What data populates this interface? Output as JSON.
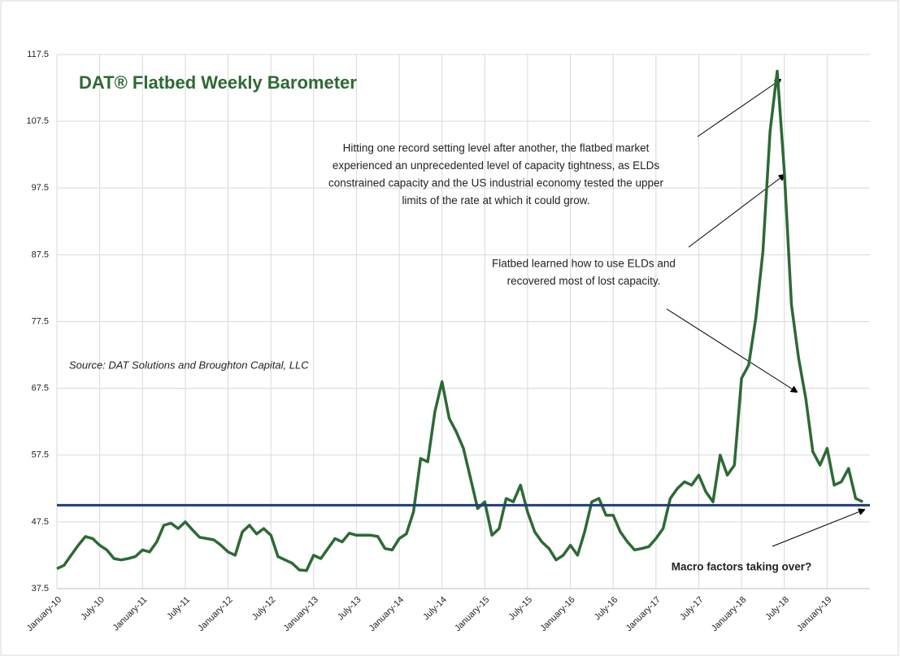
{
  "chart_data": {
    "type": "line",
    "title": "DAT® Flatbed Weekly Barometer",
    "source": "Source: DAT Solutions and Broughton Capital, LLC",
    "annotations": [
      {
        "lines": [
          "Hitting one record setting level after another, the flatbed market",
          "experienced an unprecedented level of capacity tightness, as ELDs",
          "constrained capacity and the US industrial economy tested the upper",
          "limits of the rate at which it could grow."
        ]
      },
      {
        "lines": [
          "Flatbed learned how to use ELDs and",
          "recovered most of lost capacity."
        ]
      },
      {
        "lines": [
          "Macro factors taking over?"
        ],
        "bold": true
      }
    ],
    "x": [
      "2010-01",
      "2010-02",
      "2010-03",
      "2010-04",
      "2010-05",
      "2010-06",
      "2010-07",
      "2010-08",
      "2010-09",
      "2010-10",
      "2010-11",
      "2010-12",
      "2011-01",
      "2011-02",
      "2011-03",
      "2011-04",
      "2011-05",
      "2011-06",
      "2011-07",
      "2011-08",
      "2011-09",
      "2011-10",
      "2011-11",
      "2011-12",
      "2012-01",
      "2012-02",
      "2012-03",
      "2012-04",
      "2012-05",
      "2012-06",
      "2012-07",
      "2012-08",
      "2012-09",
      "2012-10",
      "2012-11",
      "2012-12",
      "2013-01",
      "2013-02",
      "2013-03",
      "2013-04",
      "2013-05",
      "2013-06",
      "2013-07",
      "2013-08",
      "2013-09",
      "2013-10",
      "2013-11",
      "2013-12",
      "2014-01",
      "2014-02",
      "2014-03",
      "2014-04",
      "2014-05",
      "2014-06",
      "2014-07",
      "2014-08",
      "2014-09",
      "2014-10",
      "2014-11",
      "2014-12",
      "2015-01",
      "2015-02",
      "2015-03",
      "2015-04",
      "2015-05",
      "2015-06",
      "2015-07",
      "2015-08",
      "2015-09",
      "2015-10",
      "2015-11",
      "2015-12",
      "2016-01",
      "2016-02",
      "2016-03",
      "2016-04",
      "2016-05",
      "2016-06",
      "2016-07",
      "2016-08",
      "2016-09",
      "2016-10",
      "2016-11",
      "2016-12",
      "2017-01",
      "2017-02",
      "2017-03",
      "2017-04",
      "2017-05",
      "2017-06",
      "2017-07",
      "2017-08",
      "2017-09",
      "2017-10",
      "2017-11",
      "2017-12",
      "2018-01",
      "2018-02",
      "2018-03",
      "2018-04",
      "2018-05",
      "2018-06",
      "2018-07",
      "2018-08",
      "2018-09",
      "2018-10",
      "2018-11",
      "2018-12",
      "2019-01",
      "2019-02",
      "2019-03",
      "2019-04",
      "2019-05",
      "2019-06"
    ],
    "series": [
      {
        "name": "DAT Flatbed Weekly Barometer",
        "color": "#2d6a34",
        "values": [
          40.5,
          41,
          42.5,
          44,
          45.3,
          45,
          44,
          43.3,
          42,
          41.8,
          42,
          42.3,
          43.3,
          43,
          44.5,
          47,
          47.3,
          46.5,
          47.5,
          46.3,
          45.2,
          45,
          44.8,
          44,
          43,
          42.5,
          46,
          47,
          45.7,
          46.5,
          45.5,
          42.3,
          41.8,
          41.3,
          40.3,
          40.2,
          42.5,
          42,
          43.5,
          45,
          44.5,
          45.8,
          45.5,
          45.5,
          45.5,
          45.3,
          43.5,
          43.3,
          45,
          45.7,
          49,
          57,
          56.5,
          64,
          68.5,
          63,
          61,
          58.5,
          54,
          49.5,
          50.5,
          45.5,
          46.5,
          51,
          50.5,
          53,
          49,
          46,
          44.5,
          43.5,
          41.8,
          42.5,
          44,
          42.5,
          46,
          50.5,
          51,
          48.5,
          48.5,
          46,
          44.5,
          43.3,
          43.5,
          43.8,
          45,
          46.5,
          51,
          52.5,
          53.5,
          53,
          54.5,
          52,
          50.5,
          57.5,
          54.5,
          56,
          69,
          71,
          78,
          88,
          106,
          115,
          100,
          80,
          72,
          66,
          58,
          56,
          58.5,
          53,
          53.5,
          55.5,
          51,
          50.5
        ]
      }
    ],
    "reference_line": {
      "value": 50,
      "color": "#1f3e7a"
    },
    "xlim": [
      "2010-01",
      "2019-07"
    ],
    "xticks": [
      {
        "value": "2010-01",
        "label": "January-10"
      },
      {
        "value": "2010-07",
        "label": "July-10"
      },
      {
        "value": "2011-01",
        "label": "January-11"
      },
      {
        "value": "2011-07",
        "label": "July-11"
      },
      {
        "value": "2012-01",
        "label": "January-12"
      },
      {
        "value": "2012-07",
        "label": "July-12"
      },
      {
        "value": "2013-01",
        "label": "January-13"
      },
      {
        "value": "2013-07",
        "label": "July-13"
      },
      {
        "value": "2014-01",
        "label": "January-14"
      },
      {
        "value": "2014-07",
        "label": "July-14"
      },
      {
        "value": "2015-01",
        "label": "January-15"
      },
      {
        "value": "2015-07",
        "label": "July-15"
      },
      {
        "value": "2016-01",
        "label": "January-16"
      },
      {
        "value": "2016-07",
        "label": "July-16"
      },
      {
        "value": "2017-01",
        "label": "January-17"
      },
      {
        "value": "2017-07",
        "label": "July-17"
      },
      {
        "value": "2018-01",
        "label": "January-18"
      },
      {
        "value": "2018-07",
        "label": "July-18"
      },
      {
        "value": "2019-01",
        "label": "January-19"
      }
    ],
    "ylim": [
      37.5,
      117.5
    ],
    "yticks": [
      37.5,
      47.5,
      57.5,
      67.5,
      77.5,
      87.5,
      97.5,
      107.5,
      117.5
    ],
    "grid": true
  }
}
